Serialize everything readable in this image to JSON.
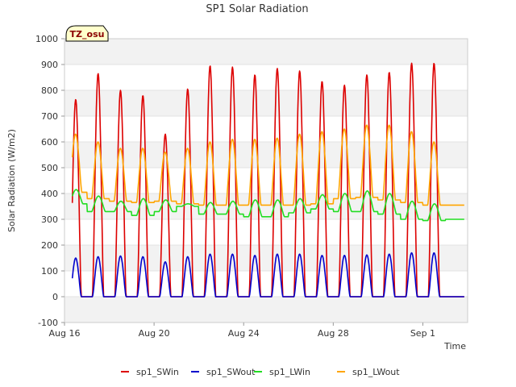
{
  "chart_data": {
    "type": "line",
    "title": "SP1 Solar Radiation",
    "xlabel": "Time",
    "ylabel": "Solar Radiation (W/m2)",
    "tag": "TZ_osu",
    "ylim": [
      -100,
      1000
    ],
    "yticks": [
      -100,
      0,
      100,
      200,
      300,
      400,
      500,
      600,
      700,
      800,
      900,
      1000
    ],
    "xlim": [
      "2023-08-16",
      "2023-09-03"
    ],
    "xticks": [
      {
        "date": "2023-08-16",
        "label": "Aug 16"
      },
      {
        "date": "2023-08-20",
        "label": "Aug 20"
      },
      {
        "date": "2023-08-24",
        "label": "Aug 24"
      },
      {
        "date": "2023-08-28",
        "label": "Aug 28"
      },
      {
        "date": "2023-09-01",
        "label": "Sep 1"
      }
    ],
    "grid": "horizontal bands",
    "legend_position": "bottom",
    "days": [
      "2023-08-16",
      "2023-08-17",
      "2023-08-18",
      "2023-08-19",
      "2023-08-20",
      "2023-08-21",
      "2023-08-22",
      "2023-08-23",
      "2023-08-24",
      "2023-08-25",
      "2023-08-26",
      "2023-08-27",
      "2023-08-28",
      "2023-08-29",
      "2023-08-30",
      "2023-08-31",
      "2023-09-01",
      "2023-09-02"
    ],
    "series": [
      {
        "name": "sp1_SWin",
        "color": "#dd0000",
        "daily_min": [
          0,
          0,
          0,
          0,
          0,
          0,
          0,
          0,
          0,
          0,
          0,
          0,
          0,
          0,
          0,
          0,
          0,
          0
        ],
        "daily_peak": [
          765,
          865,
          800,
          780,
          630,
          805,
          895,
          890,
          860,
          885,
          875,
          835,
          820,
          860,
          870,
          905,
          905,
          0
        ]
      },
      {
        "name": "sp1_SWout",
        "color": "#0000cc",
        "daily_min": [
          0,
          0,
          0,
          0,
          0,
          0,
          0,
          0,
          0,
          0,
          0,
          0,
          0,
          0,
          0,
          0,
          0,
          0
        ],
        "daily_peak": [
          150,
          155,
          158,
          155,
          135,
          155,
          165,
          165,
          160,
          165,
          165,
          160,
          160,
          162,
          165,
          170,
          170,
          0
        ]
      },
      {
        "name": "sp1_LWin",
        "color": "#22dd22",
        "daily_min": [
          360,
          330,
          330,
          315,
          330,
          350,
          320,
          320,
          310,
          310,
          325,
          340,
          330,
          330,
          320,
          300,
          295,
          300
        ],
        "daily_peak": [
          415,
          390,
          370,
          380,
          375,
          360,
          365,
          370,
          375,
          375,
          380,
          395,
          400,
          410,
          400,
          370,
          360,
          300
        ]
      },
      {
        "name": "sp1_LWout",
        "color": "#ffa500",
        "daily_min": [
          405,
          380,
          370,
          365,
          370,
          360,
          355,
          355,
          355,
          355,
          355,
          360,
          380,
          385,
          375,
          365,
          355,
          355
        ],
        "daily_peak": [
          630,
          600,
          575,
          575,
          560,
          575,
          600,
          610,
          610,
          615,
          630,
          640,
          650,
          665,
          665,
          640,
          600,
          355
        ]
      }
    ]
  }
}
